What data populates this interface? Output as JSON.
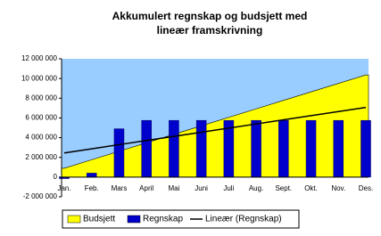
{
  "chart_data": {
    "type": "combo",
    "title": "Akkumulert regnskap og budsjett med lineær framskrivning",
    "categories": [
      "Jan.",
      "Feb.",
      "Mars",
      "April",
      "Mai",
      "Juni",
      "Juli",
      "Aug.",
      "Sept.",
      "Okt.",
      "Nov.",
      "Des."
    ],
    "series": [
      {
        "name": "Budsjett",
        "type": "area",
        "color": "#ffff00",
        "values": [
          900000,
          1760000,
          2620000,
          3480000,
          4340000,
          5200000,
          6060000,
          6920000,
          7780000,
          8640000,
          9500000,
          10360000
        ]
      },
      {
        "name": "Regnskap",
        "type": "bar",
        "color": "#0000cc",
        "values": [
          -150000,
          400000,
          4900000,
          5750000,
          5750000,
          5750000,
          5750000,
          5750000,
          5750000,
          5750000,
          5750000,
          5750000
        ]
      },
      {
        "name": "Lineær (Regnskap)",
        "type": "line",
        "color": "#000000",
        "values": [
          2450000,
          2870000,
          3290000,
          3710000,
          4130000,
          4550000,
          4970000,
          5390000,
          5810000,
          6230000,
          6650000,
          7070000
        ]
      }
    ],
    "ylim": [
      -2000000,
      12000000
    ],
    "yticks": [
      {
        "value": -2000000,
        "label": "-2 000 000"
      },
      {
        "value": 0,
        "label": "0"
      },
      {
        "value": 2000000,
        "label": "2 000 000"
      },
      {
        "value": 4000000,
        "label": "4 000 000"
      },
      {
        "value": 6000000,
        "label": "6 000 000"
      },
      {
        "value": 8000000,
        "label": "8 000 000"
      },
      {
        "value": 10000000,
        "label": "10 000 000"
      },
      {
        "value": 12000000,
        "label": "12 000 000"
      }
    ],
    "plot_background": "#99ccff",
    "legend": "bottom"
  }
}
